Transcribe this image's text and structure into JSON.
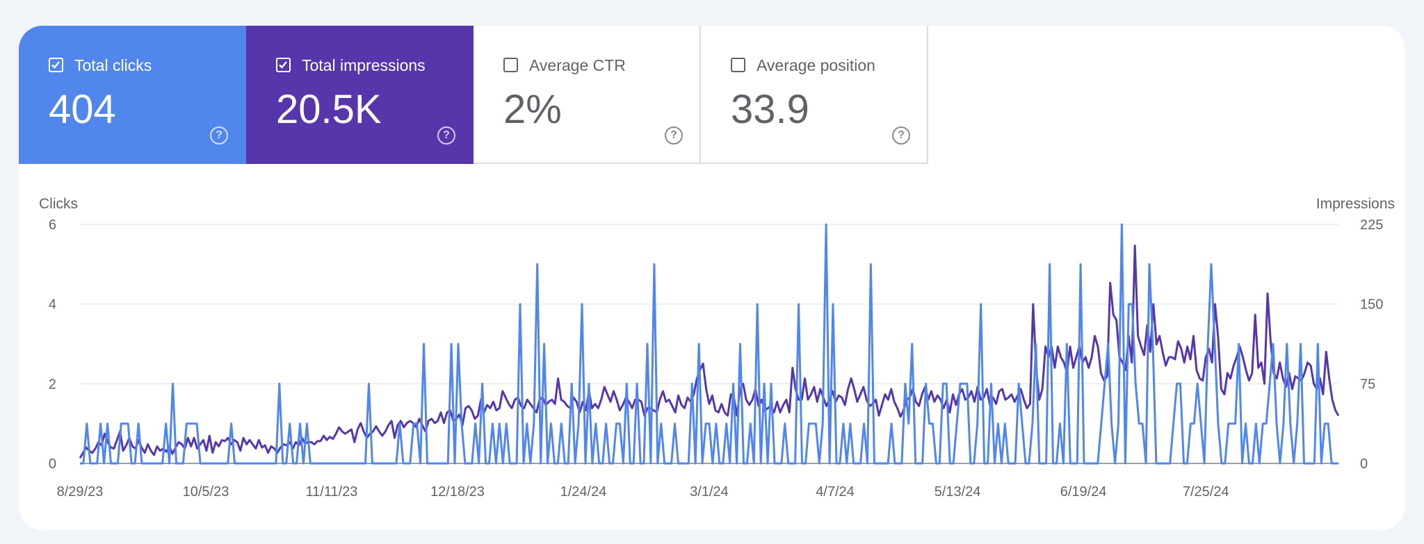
{
  "metrics": [
    {
      "label": "Total clicks",
      "value": "404",
      "checked": true
    },
    {
      "label": "Total impressions",
      "value": "20.5K",
      "checked": true
    },
    {
      "label": "Average CTR",
      "value": "2%",
      "checked": false
    },
    {
      "label": "Average position",
      "value": "33.9",
      "checked": false
    }
  ],
  "colors": {
    "clicks": "#5186ec",
    "impressions": "#5636aa",
    "grid": "#e8eaed",
    "axis": "#9aa0a6",
    "background": "#f1f4f9"
  },
  "chart_data": {
    "type": "line",
    "ylabel_left": "Clicks",
    "ylabel_right": "Impressions",
    "y_left_ticks": [
      "0",
      "2",
      "4",
      "6"
    ],
    "y_right_ticks": [
      "0",
      "75",
      "150",
      "225"
    ],
    "y_left_range": [
      0,
      6
    ],
    "y_right_range": [
      0,
      225
    ],
    "x_range": [
      "8/29/23",
      "9/2/24"
    ],
    "x_ticks": [
      "8/29/23",
      "10/5/23",
      "11/11/23",
      "12/18/23",
      "1/24/24",
      "3/1/24",
      "4/7/24",
      "5/13/24",
      "6/19/24",
      "7/25/24"
    ],
    "grid": true,
    "series": [
      {
        "name": "Clicks",
        "axis": "left",
        "values": [
          0,
          0,
          1,
          0,
          0,
          0,
          1,
          0,
          1,
          0,
          0,
          0,
          1,
          1,
          1,
          0,
          0,
          1,
          0,
          0,
          0,
          0,
          0,
          0,
          0,
          1,
          0,
          2,
          0,
          0,
          0,
          1,
          1,
          1,
          1,
          0,
          0,
          0,
          0,
          0,
          0,
          0,
          0,
          0,
          1,
          0,
          0,
          0,
          0,
          0,
          0,
          0,
          0,
          0,
          0,
          0,
          0,
          0,
          2,
          0,
          0,
          1,
          0,
          0,
          1,
          0,
          1,
          0,
          0,
          0,
          0,
          0,
          0,
          0,
          0,
          0,
          0,
          0,
          0,
          0,
          0,
          0,
          0,
          0,
          2,
          0,
          0,
          0,
          0,
          0,
          0,
          0,
          0,
          1,
          0,
          0,
          0,
          1,
          1,
          0,
          3,
          0,
          0,
          0,
          0,
          0,
          0,
          0,
          3,
          0,
          3,
          1,
          0,
          0,
          0,
          1,
          0,
          2,
          0,
          0,
          1,
          0,
          1,
          0,
          1,
          0,
          0,
          0,
          4,
          0,
          1,
          0,
          1,
          5,
          0,
          3,
          0,
          1,
          0,
          0,
          1,
          0,
          0,
          2,
          0,
          1,
          4,
          0,
          2,
          0,
          1,
          0,
          0,
          1,
          0,
          0,
          1,
          1,
          0,
          2,
          0,
          0,
          2,
          0,
          0,
          3,
          0,
          5,
          0,
          1,
          0,
          0,
          0,
          1,
          0,
          0,
          0,
          0,
          2,
          0,
          3,
          0,
          1,
          1,
          0,
          1,
          0,
          0,
          1,
          0,
          2,
          0,
          3,
          0,
          0,
          1,
          0,
          4,
          0,
          2,
          0,
          2,
          0,
          0,
          0,
          1,
          0,
          0,
          0,
          4,
          0,
          0,
          1,
          1,
          1,
          0,
          1,
          6,
          0,
          4,
          0,
          0,
          1,
          0,
          1,
          0,
          0,
          0,
          1,
          0,
          5,
          0,
          0,
          0,
          0,
          0,
          1,
          0,
          0,
          0,
          2,
          1,
          3,
          0,
          0,
          0,
          2,
          1,
          1,
          0,
          0,
          2,
          2,
          0,
          0,
          1,
          2,
          2,
          2,
          0,
          0,
          1,
          4,
          0,
          0,
          2,
          0,
          1,
          0,
          1,
          0,
          0,
          0,
          2,
          1,
          0,
          0,
          1,
          3,
          0,
          0,
          0,
          5,
          0,
          0,
          1,
          0,
          3,
          0,
          0,
          0,
          5,
          0,
          0,
          0,
          0,
          0,
          1,
          2,
          3,
          1,
          0,
          1,
          6,
          0,
          4,
          4,
          2,
          1,
          1,
          0,
          5,
          3,
          0,
          0,
          0,
          0,
          0,
          1,
          2,
          2,
          0,
          0,
          1,
          1,
          2,
          1,
          0,
          3,
          5,
          3,
          1,
          0,
          0,
          1,
          1,
          1,
          3,
          0,
          1,
          0,
          0,
          1,
          0,
          1,
          1,
          2,
          3,
          1,
          0,
          1,
          3,
          1,
          0,
          1,
          3,
          0,
          0,
          0,
          0,
          3,
          0,
          1,
          1,
          0,
          0,
          0
        ]
      },
      {
        "name": "Impressions",
        "axis": "right",
        "values": [
          5,
          10,
          15,
          12,
          10,
          14,
          20,
          17,
          28,
          20,
          15,
          14,
          22,
          30,
          12,
          17,
          24,
          16,
          14,
          22,
          15,
          10,
          18,
          12,
          8,
          16,
          12,
          14,
          11,
          16,
          9,
          15,
          20,
          18,
          14,
          24,
          16,
          24,
          14,
          18,
          22,
          12,
          26,
          10,
          20,
          16,
          22,
          21,
          24,
          18,
          22,
          20,
          12,
          24,
          18,
          22,
          18,
          14,
          22,
          15,
          17,
          10,
          16,
          14,
          10,
          15,
          18,
          17,
          20,
          14,
          20,
          17,
          24,
          19,
          20,
          20,
          18,
          21,
          21,
          26,
          22,
          25,
          23,
          28,
          34,
          30,
          28,
          30,
          32,
          20,
          32,
          38,
          30,
          24,
          28,
          30,
          35,
          30,
          26,
          30,
          36,
          40,
          24,
          36,
          40,
          34,
          38,
          40,
          38,
          34,
          42,
          36,
          30,
          40,
          42,
          38,
          40,
          48,
          38,
          48,
          50,
          40,
          42,
          46,
          36,
          52,
          54,
          50,
          42,
          45,
          60,
          48,
          55,
          52,
          58,
          50,
          52,
          68,
          62,
          56,
          52,
          60,
          62,
          54,
          52,
          60,
          56,
          52,
          48,
          60,
          62,
          55,
          58,
          60,
          56,
          80,
          60,
          58,
          54,
          52,
          62,
          58,
          48,
          58,
          50,
          68,
          52,
          56,
          52,
          60,
          72,
          65,
          58,
          68,
          60,
          50,
          55,
          62,
          58,
          52,
          60,
          60,
          58,
          45,
          52,
          52,
          50,
          48,
          60,
          68,
          58,
          60,
          54,
          48,
          64,
          55,
          52,
          62,
          58,
          65,
          80,
          88,
          94,
          70,
          56,
          64,
          50,
          48,
          56,
          48,
          45,
          65,
          62,
          45,
          70,
          75,
          60,
          55,
          60,
          70,
          54,
          60,
          50,
          52,
          54,
          48,
          58,
          48,
          55,
          60,
          48,
          90,
          70,
          60,
          60,
          80,
          60,
          65,
          72,
          58,
          70,
          62,
          54,
          60,
          68,
          58,
          64,
          62,
          55,
          70,
          80,
          70,
          58,
          65,
          72,
          60,
          54,
          56,
          60,
          45,
          55,
          65,
          60,
          70,
          58,
          52,
          44,
          50,
          60,
          62,
          70,
          58,
          54,
          65,
          72,
          60,
          68,
          58,
          64,
          60,
          52,
          60,
          48,
          65,
          55,
          65,
          70,
          60,
          62,
          68,
          58,
          72,
          60,
          62,
          70,
          55,
          62,
          56,
          68,
          70,
          60,
          62,
          65,
          58,
          64,
          70,
          60,
          52,
          56,
          150,
          90,
          60,
          70,
          110,
          100,
          110,
          90,
          110,
          100,
          95,
          85,
          110,
          90,
          100,
          110,
          95,
          100,
          90,
          100,
          120,
          110,
          85,
          78,
          82,
          170,
          140,
          135,
          100,
          95,
          88,
          120,
          95,
          205,
          120,
          110,
          102,
          130,
          105,
          150,
          112,
          120,
          105,
          92,
          100,
          100,
          98,
          115,
          108,
          95,
          110,
          98,
          120,
          88,
          80,
          78,
          100,
          108,
          95,
          150,
          118,
          70,
          65,
          85,
          80,
          92,
          100,
          110,
          100,
          88,
          78,
          85,
          140,
          90,
          95,
          75,
          160,
          115,
          85,
          80,
          95,
          80,
          72,
          85,
          70,
          82,
          80,
          78,
          85,
          95,
          92,
          75,
          70,
          80,
          65,
          105,
          80,
          60,
          50,
          45
        ]
      }
    ]
  }
}
